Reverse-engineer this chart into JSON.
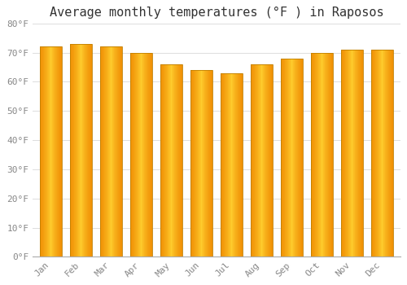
{
  "title": "Average monthly temperatures (°F ) in Raposos",
  "months": [
    "Jan",
    "Feb",
    "Mar",
    "Apr",
    "May",
    "Jun",
    "Jul",
    "Aug",
    "Sep",
    "Oct",
    "Nov",
    "Dec"
  ],
  "values": [
    72,
    73,
    72,
    70,
    66,
    64,
    63,
    66,
    68,
    70,
    71,
    71
  ],
  "bar_color_center": "#FFD000",
  "bar_color_edge": "#F0920A",
  "bar_edge_color": "#C8820A",
  "background_color": "#FFFFFF",
  "grid_color": "#DDDDDD",
  "ylim": [
    0,
    80
  ],
  "yticks": [
    0,
    10,
    20,
    30,
    40,
    50,
    60,
    70,
    80
  ],
  "ytick_labels": [
    "0°F",
    "10°F",
    "20°F",
    "30°F",
    "40°F",
    "50°F",
    "60°F",
    "70°F",
    "80°F"
  ],
  "title_fontsize": 11,
  "tick_fontsize": 8,
  "figsize": [
    5.0,
    3.5
  ],
  "dpi": 100,
  "bar_width": 0.72
}
